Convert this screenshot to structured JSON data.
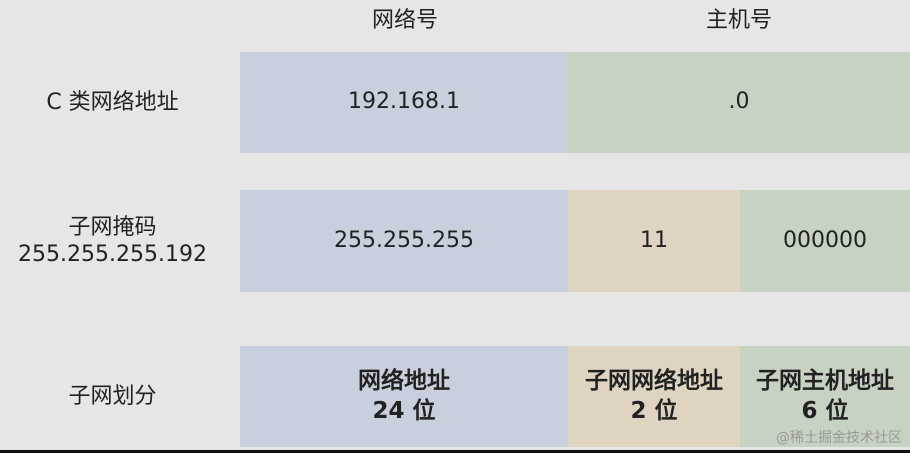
{
  "headers": {
    "network": "网络号",
    "host": "主机号"
  },
  "rows": [
    {
      "label": [
        "C 类网络地址"
      ],
      "cells": [
        [
          "192.168.1"
        ],
        [
          ".0"
        ]
      ]
    },
    {
      "label": [
        "子网掩码",
        "255.255.255.192"
      ],
      "cells": [
        [
          "255.255.255"
        ],
        [
          "11"
        ],
        [
          "000000"
        ]
      ]
    },
    {
      "label": [
        "子网划分"
      ],
      "cells": [
        [
          "网络地址",
          "24 位"
        ],
        [
          "子网网络地址",
          "2 位"
        ],
        [
          "子网主机地址",
          "6 位"
        ]
      ]
    }
  ],
  "watermark": "@稀土掘金技术社区"
}
